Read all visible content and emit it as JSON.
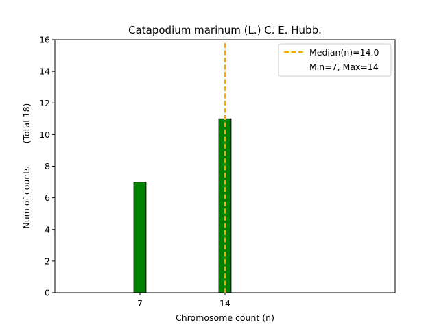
{
  "chart_data": {
    "type": "bar",
    "title": "Catapodium marinum (L.) C. E. Hubb.",
    "xlabel": "Chromosome count (n)",
    "ylabel": "Num of counts",
    "ylabel_total": "(Total 18)",
    "x_ticks": [
      7,
      14
    ],
    "y_ticks": [
      0,
      2,
      4,
      6,
      8,
      10,
      12,
      14,
      16
    ],
    "xlim": [
      0,
      28
    ],
    "ylim": [
      0,
      16
    ],
    "bars": [
      {
        "x": 7,
        "value": 7
      },
      {
        "x": 14,
        "value": 11
      }
    ],
    "bar_color": "#008000",
    "median": 14.0,
    "median_color": "#FFA500",
    "legend": {
      "placement": "top-right",
      "median_label": "Median(n)=14.0",
      "range_label": "Min=7, Max=14"
    },
    "grid": false
  }
}
